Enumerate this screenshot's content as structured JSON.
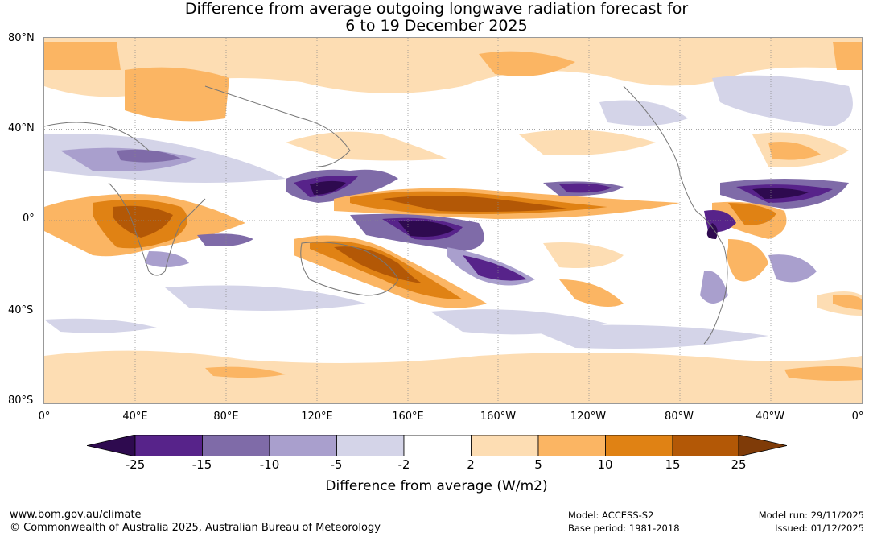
{
  "title": {
    "line1": "Difference from average outgoing longwave radiation forecast for",
    "line2": "6 to 19 December 2025"
  },
  "map": {
    "lat_labels": [
      "80°N",
      "40°N",
      "0°",
      "40°S",
      "80°S"
    ],
    "lon_labels": [
      "0°",
      "40°E",
      "80°E",
      "120°E",
      "160°E",
      "160°W",
      "120°W",
      "80°W",
      "40°W",
      "0°"
    ]
  },
  "colorbar": {
    "ticks": [
      "-25",
      "-15",
      "-10",
      "-5",
      "-2",
      "2",
      "5",
      "10",
      "15",
      "25"
    ],
    "colors": [
      "#2e0a4f",
      "#57238a",
      "#7f6ba8",
      "#a99fcd",
      "#d4d4e8",
      "#ffffff",
      "#fdddb3",
      "#fbb563",
      "#e08214",
      "#b35806",
      "#7f3b08"
    ],
    "label": "Difference from average (W/m2)"
  },
  "footer": {
    "url": "www.bom.gov.au/climate",
    "copyright": "© Commonwealth of Australia 2025, Australian Bureau of Meteorology",
    "model": "Model: ACCESS-S2",
    "base_period": "Base period: 1981-2018",
    "model_run": "Model run: 29/11/2025",
    "issued": "Issued: 01/12/2025"
  }
}
